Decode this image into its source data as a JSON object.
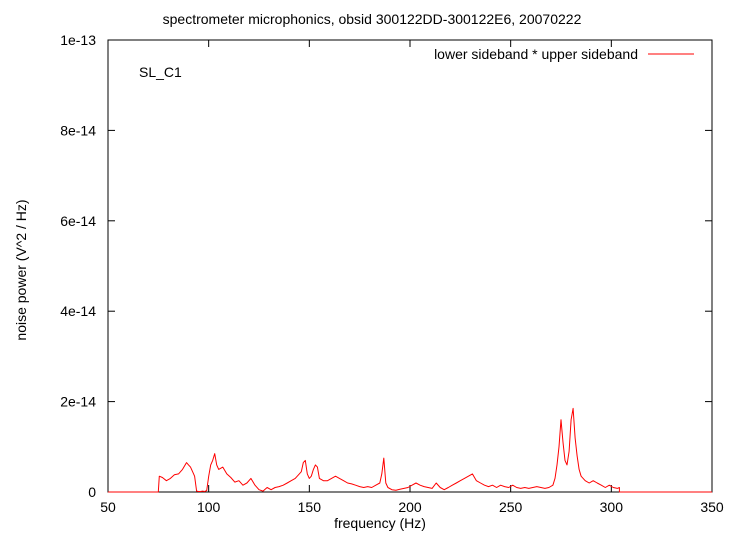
{
  "chart_data": {
    "type": "line",
    "title": "spectrometer microphonics, obsid 300122DD-300122E6, 20070222",
    "xlabel": "frequency (Hz)",
    "ylabel": "noise power (V^2 / Hz)",
    "annotation": "SL_C1",
    "xlim": [
      50,
      350
    ],
    "ylim": [
      0,
      1e-13
    ],
    "x_ticks": [
      50,
      100,
      150,
      200,
      250,
      300,
      350
    ],
    "x_tick_labels": [
      "50",
      "100",
      "150",
      "200",
      "250",
      "300",
      "350"
    ],
    "y_ticks": [
      0,
      2e-14,
      4e-14,
      6e-14,
      8e-14,
      1e-13
    ],
    "y_tick_labels": [
      "0",
      "2e-14",
      "4e-14",
      "6e-14",
      "8e-14",
      "1e-13"
    ],
    "legend_position": "top-right",
    "grid": false,
    "series": [
      {
        "name": "lower sideband * upper sideband",
        "color": "#ff0000",
        "x": [
          75,
          75.5,
          77,
          79,
          81,
          83,
          85,
          87,
          89,
          90,
          91,
          92,
          93,
          94,
          95,
          96,
          97,
          98,
          99,
          100,
          101,
          102,
          103,
          104,
          105,
          107,
          109,
          111,
          113,
          115,
          117,
          119,
          121,
          123,
          125,
          127,
          129,
          131,
          133,
          135,
          137,
          139,
          141,
          143,
          145,
          146,
          147,
          148,
          149,
          150,
          151,
          152,
          153,
          154,
          155,
          157,
          159,
          161,
          163,
          165,
          167,
          169,
          171,
          173,
          175,
          177,
          179,
          181,
          183,
          185,
          186,
          187,
          188,
          189,
          191,
          193,
          195,
          197,
          199,
          201,
          203,
          205,
          207,
          209,
          211,
          213,
          215,
          217,
          219,
          221,
          223,
          225,
          227,
          229,
          231,
          233,
          235,
          237,
          239,
          241,
          243,
          245,
          247,
          249,
          251,
          253,
          255,
          257,
          259,
          261,
          263,
          265,
          267,
          269,
          271,
          272,
          273,
          274,
          275,
          276,
          277,
          278,
          279,
          280,
          281,
          282,
          283,
          284,
          285,
          287,
          289,
          291,
          293,
          295,
          297,
          299,
          301,
          303,
          304
        ],
        "y": [
          0,
          3.5e-15,
          3.2e-15,
          2.5e-15,
          3e-15,
          3.8e-15,
          4e-15,
          5e-15,
          6.5e-15,
          6e-15,
          5.5e-15,
          4.5e-15,
          3.5e-15,
          2e-16,
          1e-16,
          1e-16,
          2e-16,
          1e-16,
          3e-16,
          3.5e-15,
          6e-15,
          7e-15,
          8.5e-15,
          6e-15,
          5e-15,
          5.5e-15,
          4e-15,
          3.2e-15,
          2.2e-15,
          2.5e-15,
          1.5e-15,
          2e-15,
          3e-15,
          1.5e-15,
          5e-16,
          2e-16,
          1e-15,
          5e-16,
          1e-15,
          1.2e-15,
          1.5e-15,
          2e-15,
          2.5e-15,
          3e-15,
          4e-15,
          4.5e-15,
          6.5e-15,
          7e-15,
          4e-15,
          3e-15,
          3.5e-15,
          5e-15,
          6e-15,
          5.5e-15,
          3e-15,
          2.5e-15,
          2.5e-15,
          3e-15,
          3.5e-15,
          3e-15,
          2.5e-15,
          2e-15,
          1.8e-15,
          1.5e-15,
          1.2e-15,
          1e-15,
          1.2e-15,
          1e-15,
          1.5e-15,
          2e-15,
          4e-15,
          7.5e-15,
          2e-15,
          1e-15,
          5e-16,
          4e-16,
          6e-16,
          8e-16,
          1e-15,
          1.5e-15,
          2e-15,
          1.5e-15,
          1.2e-15,
          1e-15,
          8e-16,
          2e-15,
          1e-15,
          5e-16,
          1e-15,
          1.5e-15,
          2e-15,
          2.5e-15,
          3e-15,
          3.5e-15,
          4e-15,
          2.5e-15,
          2e-15,
          1.5e-15,
          1.2e-15,
          1.5e-15,
          1e-15,
          1.5e-15,
          1.2e-15,
          1e-15,
          1.5e-15,
          1e-15,
          8e-16,
          1e-15,
          8e-16,
          1e-15,
          1.2e-15,
          1e-15,
          8e-16,
          1e-15,
          1.5e-15,
          3e-15,
          6e-15,
          1e-14,
          1.6e-14,
          1.1e-14,
          7e-15,
          6e-15,
          9e-15,
          1.6e-14,
          1.85e-14,
          1.2e-14,
          8e-15,
          5e-15,
          3.5e-15,
          2.5e-15,
          2e-15,
          2.5e-15,
          2e-15,
          1.5e-15,
          1e-15,
          1.5e-15,
          1e-15,
          8e-16,
          1e-15
        ]
      }
    ]
  }
}
